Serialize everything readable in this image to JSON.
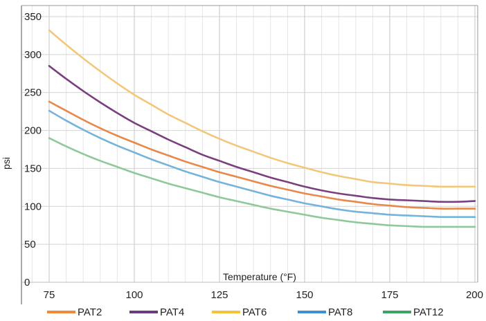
{
  "chart_data": {
    "type": "line",
    "title": "",
    "xlabel": "Temperature (°F)",
    "ylabel": "psi",
    "xlim": [
      75,
      200
    ],
    "ylim": [
      0,
      350
    ],
    "x_ticks": [
      75,
      100,
      125,
      150,
      175,
      200
    ],
    "y_ticks": [
      0,
      50,
      100,
      150,
      200,
      250,
      300,
      350
    ],
    "grid": true,
    "legend_position": "bottom",
    "x": [
      75,
      80,
      85,
      90,
      95,
      100,
      105,
      110,
      115,
      120,
      125,
      130,
      135,
      140,
      145,
      150,
      155,
      160,
      165,
      170,
      175,
      180,
      185,
      190,
      195,
      200
    ],
    "series": [
      {
        "name": "PAT2",
        "color": "#e8884a",
        "values": [
          238,
          226,
          214,
          203,
          193,
          184,
          175,
          167,
          159,
          152,
          145,
          139,
          133,
          127,
          122,
          117,
          113,
          109,
          106,
          103,
          101,
          99,
          98,
          97,
          97,
          97
        ]
      },
      {
        "name": "PAT4",
        "color": "#7a3f7e",
        "values": [
          285,
          268,
          252,
          237,
          223,
          210,
          199,
          188,
          178,
          168,
          160,
          152,
          145,
          138,
          132,
          126,
          121,
          117,
          114,
          111,
          109,
          108,
          107,
          106,
          106,
          107
        ]
      },
      {
        "name": "PAT6",
        "color": "#f3c77a",
        "values": [
          332,
          313,
          295,
          278,
          262,
          247,
          234,
          221,
          210,
          199,
          189,
          180,
          172,
          164,
          157,
          151,
          145,
          140,
          136,
          132,
          130,
          128,
          127,
          126,
          126,
          126
        ]
      },
      {
        "name": "PAT8",
        "color": "#74b3da",
        "values": [
          226,
          213,
          201,
          190,
          180,
          171,
          162,
          154,
          146,
          139,
          132,
          126,
          120,
          114,
          109,
          104,
          100,
          96,
          93,
          91,
          89,
          88,
          87,
          86,
          86,
          86
        ]
      },
      {
        "name": "PAT12",
        "color": "#8fc89a",
        "values": [
          190,
          179,
          169,
          160,
          152,
          144,
          137,
          130,
          124,
          118,
          112,
          107,
          102,
          97,
          93,
          89,
          85,
          82,
          79,
          77,
          75,
          74,
          73,
          73,
          73,
          73
        ]
      }
    ]
  },
  "legend_swatch_colors": [
    "#ef8a3a",
    "#6e3a7e",
    "#f5c23b",
    "#3d8fd1",
    "#3aa55e"
  ]
}
